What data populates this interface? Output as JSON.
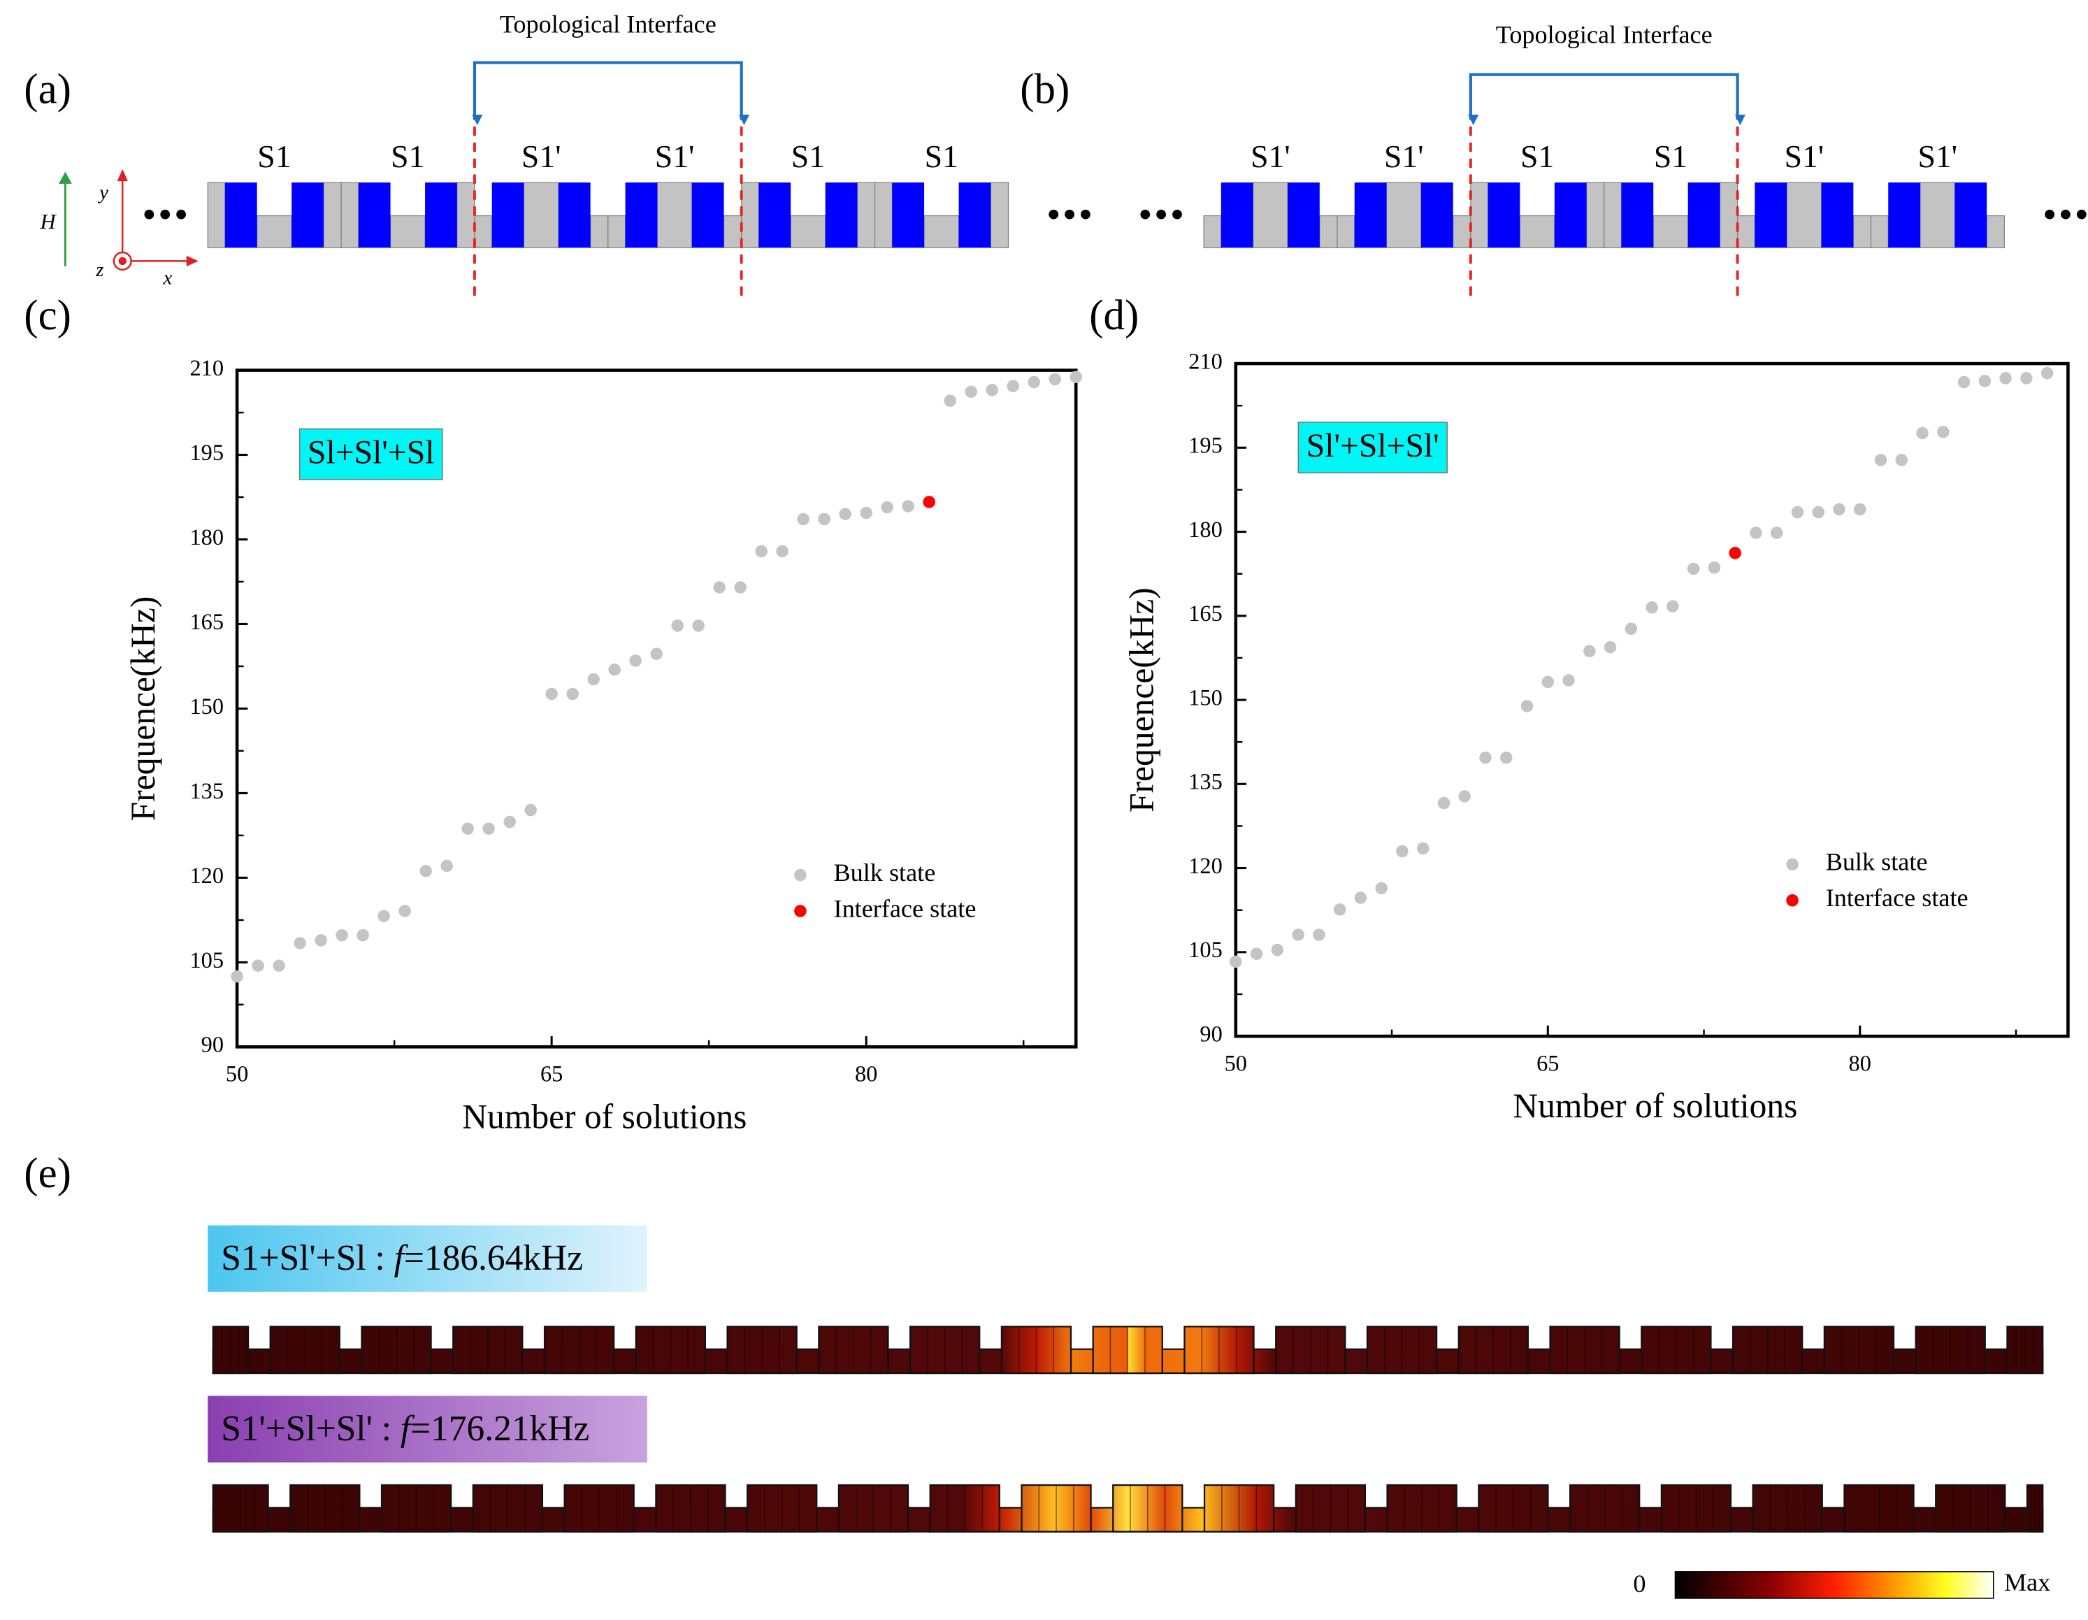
{
  "figure": {
    "a": {
      "label": "(a)",
      "interface": "Topological Interface",
      "cells": [
        "S1",
        "S1",
        "S1'",
        "S1'",
        "S1",
        "S1"
      ],
      "axes": {
        "H": "H",
        "x": "x",
        "y": "y",
        "z": "z"
      }
    },
    "b": {
      "label": "(b)",
      "interface": "Topological Interface",
      "cells": [
        "S1'",
        "S1'",
        "S1",
        "S1",
        "S1'",
        "S1'"
      ]
    },
    "e": {
      "label": "(e)",
      "modes": [
        {
          "name": "S1+Sl'+Sl : ",
          "symbol": "f",
          "value": "=186.64kHz"
        },
        {
          "name": "S1'+Sl+Sl' : ",
          "symbol": "f",
          "value": "=176.21kHz"
        }
      ],
      "colorbar": {
        "min": "0",
        "max": "Max"
      }
    }
  },
  "chart_data": [
    {
      "type": "scatter",
      "panel_label": "(c)",
      "annotation": "Sl+Sl'+Sl",
      "xlabel": "Number of solutions",
      "ylabel": "Frequence(kHz)",
      "xlim": [
        50,
        90
      ],
      "ylim": [
        90,
        210
      ],
      "xticks": [
        50,
        65,
        80
      ],
      "xminor_ticks": [
        57.5,
        72.5,
        87.5
      ],
      "yticks": [
        90,
        105,
        120,
        135,
        150,
        165,
        180,
        195,
        210
      ],
      "yminor_ticks": [
        97.5,
        112.5,
        127.5,
        142.5,
        157.5,
        172.5,
        187.5,
        202.5
      ],
      "legend": "lower right",
      "series": [
        {
          "name": "Bulk state",
          "color": "#c4c4c4",
          "x": [
            50,
            51,
            52,
            53,
            54,
            55,
            56,
            57,
            58,
            59,
            60,
            61,
            62,
            63,
            64,
            65,
            66,
            67,
            68,
            69,
            70,
            71,
            72,
            73,
            74,
            75,
            76,
            77,
            78,
            79,
            80,
            81,
            82,
            84,
            85,
            86,
            87,
            88,
            89,
            90
          ],
          "values": [
            102.5,
            104.4,
            104.4,
            108.4,
            108.9,
            109.8,
            109.8,
            113.2,
            114.1,
            121.2,
            122.1,
            128.7,
            128.7,
            129.9,
            132.0,
            152.6,
            152.6,
            155.2,
            156.9,
            158.5,
            159.7,
            164.7,
            164.7,
            171.5,
            171.5,
            177.9,
            177.9,
            183.6,
            183.6,
            184.5,
            184.7,
            185.7,
            185.9,
            204.6,
            206.2,
            206.5,
            207.2,
            207.9,
            208.4,
            208.8
          ]
        },
        {
          "name": "Interface state",
          "color": "#ff0000",
          "x": [
            83
          ],
          "values": [
            186.64
          ]
        }
      ]
    },
    {
      "type": "scatter",
      "panel_label": "(d)",
      "annotation": "Sl'+Sl+Sl'",
      "xlabel": "Number of solutions",
      "ylabel": "Frequence(kHz)",
      "xlim": [
        50,
        90
      ],
      "ylim": [
        90,
        210
      ],
      "xticks": [
        50,
        65,
        80
      ],
      "xminor_ticks": [
        57.5,
        72.5,
        87.5
      ],
      "yticks": [
        90,
        105,
        120,
        135,
        150,
        165,
        180,
        195,
        210
      ],
      "yminor_ticks": [
        97.5,
        112.5,
        127.5,
        142.5,
        157.5,
        172.5,
        187.5,
        202.5
      ],
      "legend": "lower right",
      "series": [
        {
          "name": "Bulk state",
          "color": "#c4c4c4",
          "x": [
            50,
            51,
            52,
            53,
            54,
            55,
            56,
            57,
            58,
            59,
            60,
            61,
            62,
            63,
            64,
            65,
            66,
            67,
            68,
            69,
            70,
            71,
            72,
            73,
            75,
            76,
            77,
            78,
            79,
            80,
            81,
            82,
            83,
            84,
            85,
            86,
            87,
            88,
            89
          ],
          "values": [
            103.3,
            104.7,
            105.4,
            108.1,
            108.1,
            112.6,
            114.7,
            116.4,
            123.0,
            123.5,
            131.6,
            132.8,
            139.7,
            139.7,
            148.9,
            153.2,
            153.5,
            158.7,
            159.4,
            162.7,
            166.5,
            166.7,
            173.4,
            173.6,
            179.8,
            179.8,
            183.5,
            183.5,
            184.0,
            184.0,
            192.8,
            192.8,
            197.6,
            197.8,
            206.7,
            206.9,
            207.4,
            207.4,
            208.3
          ]
        },
        {
          "name": "Interface state",
          "color": "#ff0000",
          "x": [
            74
          ],
          "values": [
            176.21
          ]
        }
      ]
    }
  ]
}
